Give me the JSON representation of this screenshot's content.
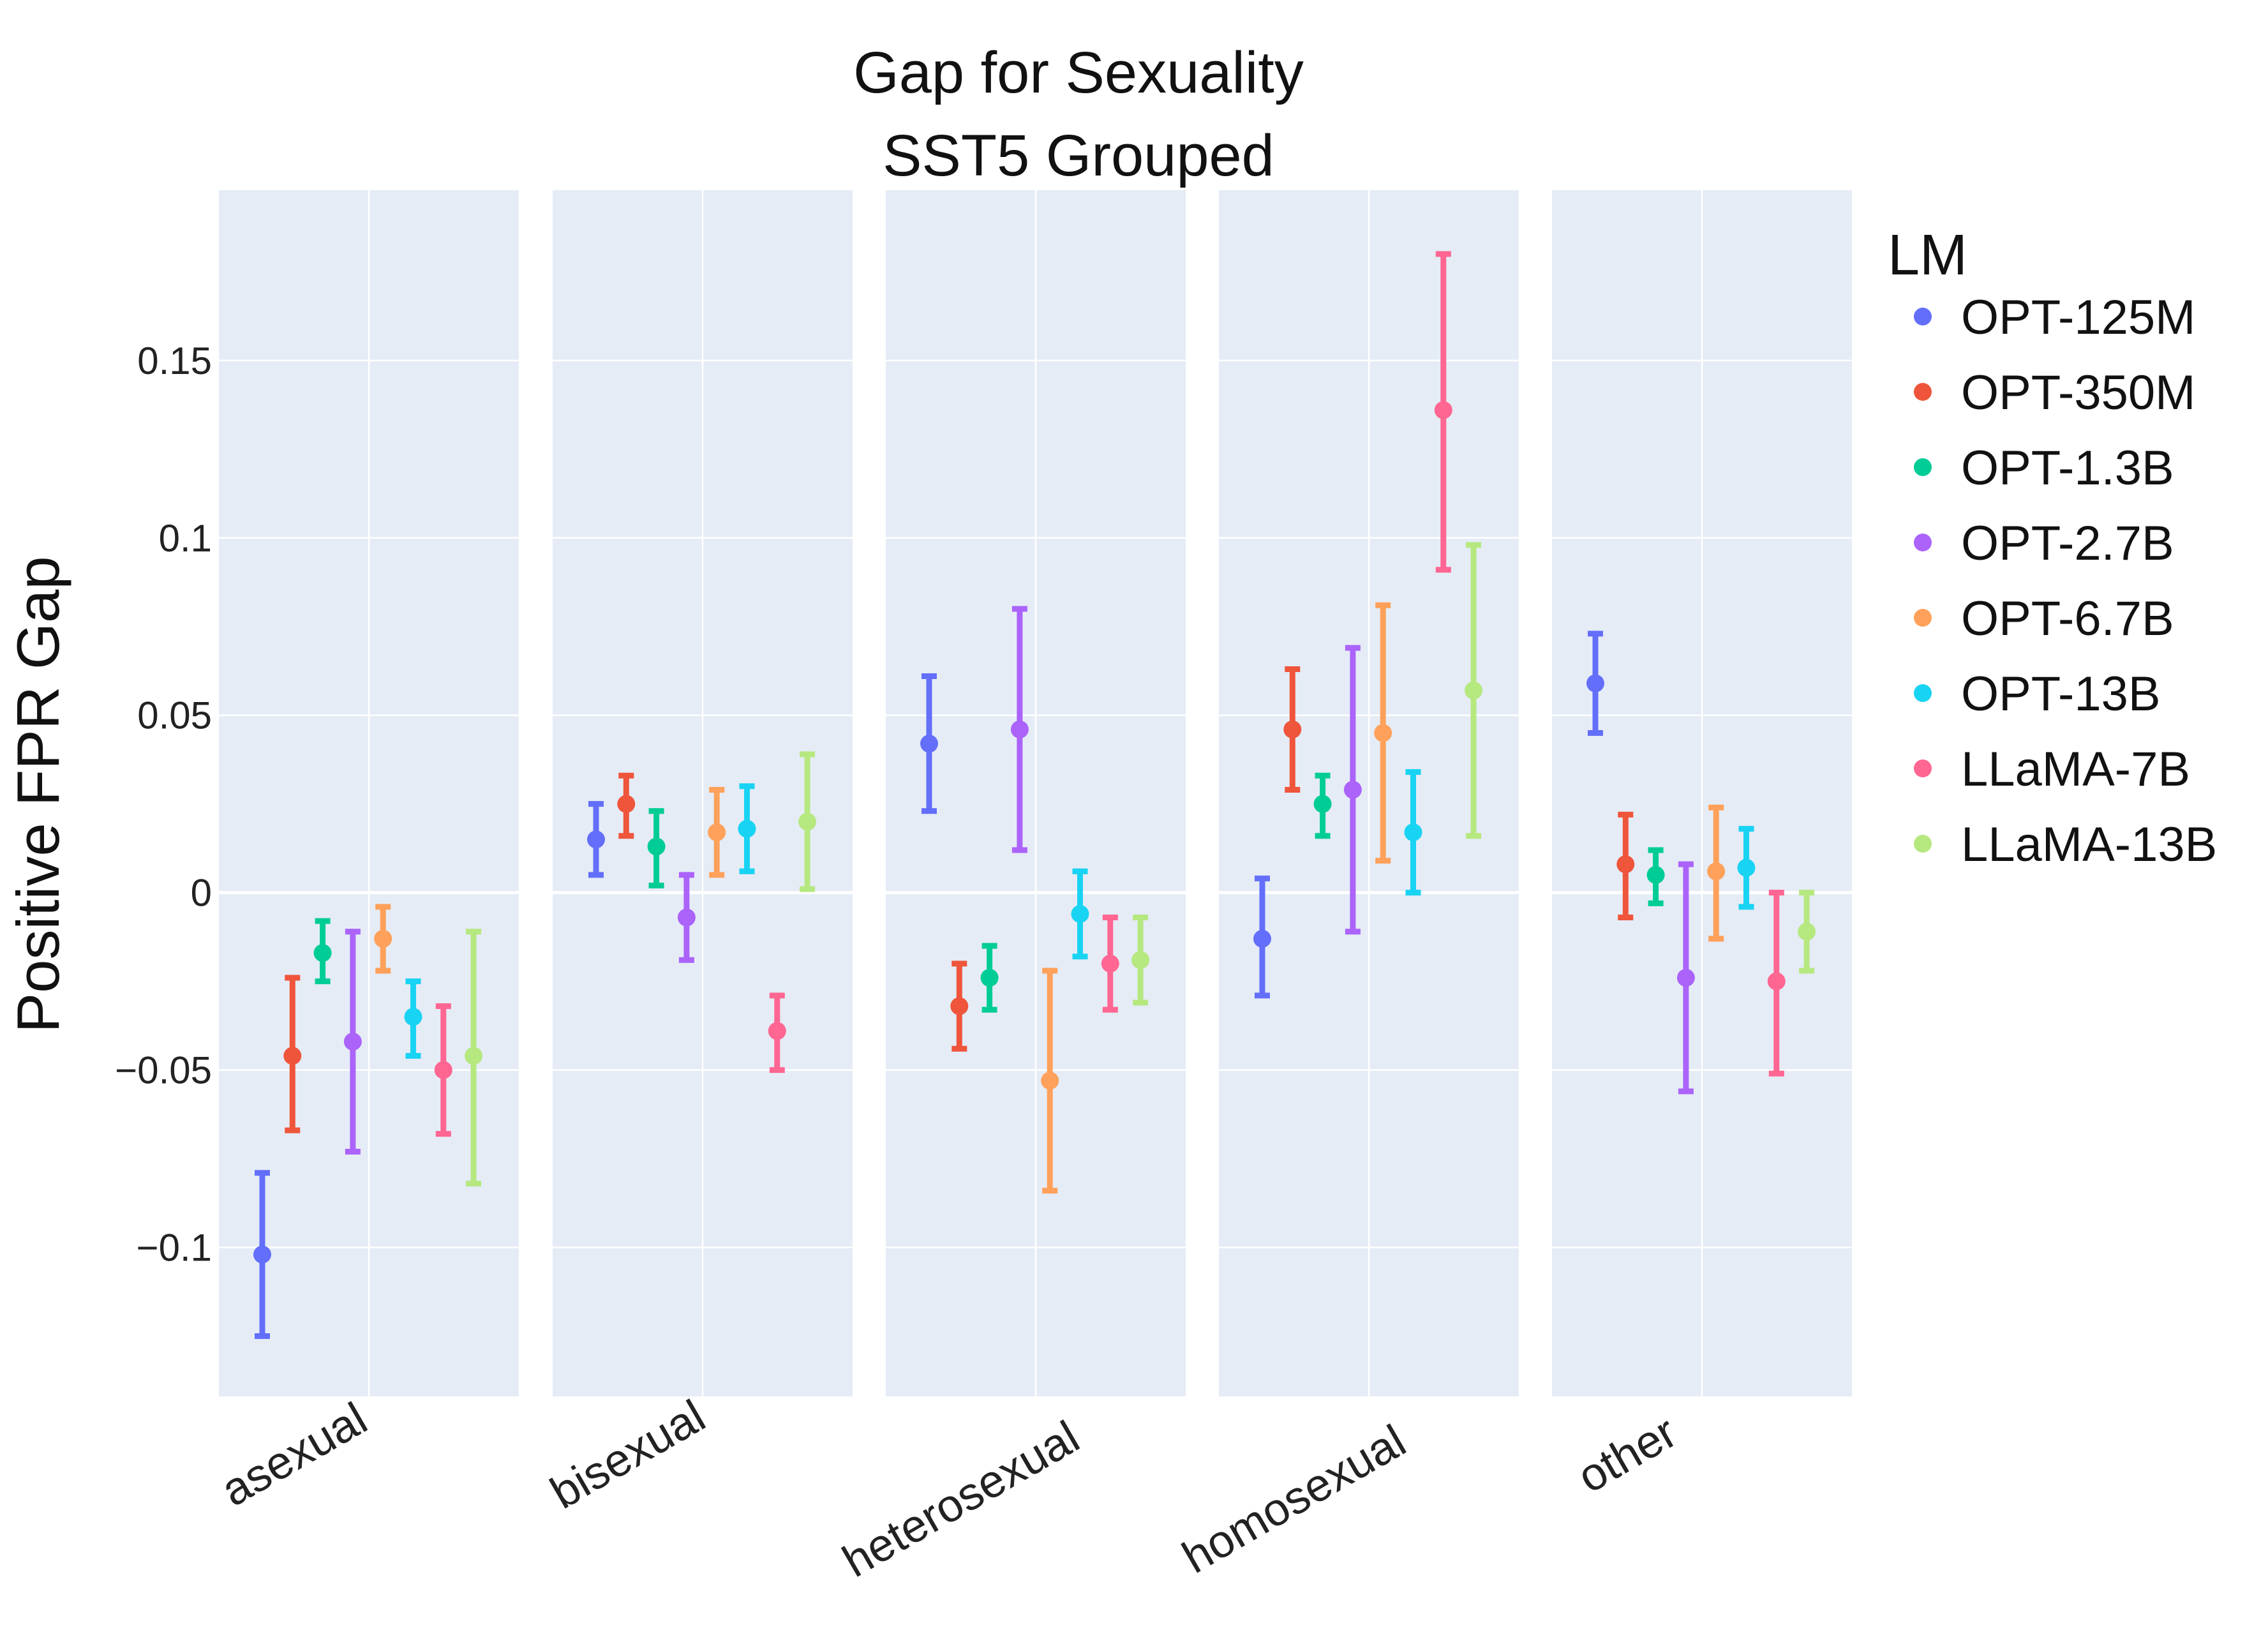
{
  "chart_data": {
    "type": "scatter",
    "title": "Gap for Sexuality",
    "subtitle": "SST5 Grouped",
    "xlabel": "",
    "ylabel": "Positive FPR Gap",
    "ylim": [
      -0.142,
      0.198
    ],
    "yticks": [
      {
        "value": 0.15,
        "label": "0.15"
      },
      {
        "value": 0.1,
        "label": "0.1"
      },
      {
        "value": 0.05,
        "label": "0.05"
      },
      {
        "value": 0,
        "label": "0"
      },
      {
        "value": -0.05,
        "label": "−0.05"
      },
      {
        "value": -0.1,
        "label": "−0.1"
      }
    ],
    "categories": [
      "asexual",
      "bisexual",
      "heterosexual",
      "homosexual",
      "other"
    ],
    "legend_title": "LM",
    "legend_position": "right",
    "series": [
      {
        "name": "OPT-125M",
        "color": "#636efa",
        "points": [
          [
            -0.102,
            -0.125,
            -0.079
          ],
          [
            0.015,
            0.005,
            0.025
          ],
          [
            0.042,
            0.023,
            0.061
          ],
          [
            -0.013,
            -0.029,
            0.004
          ],
          [
            0.059,
            0.045,
            0.073
          ]
        ]
      },
      {
        "name": "OPT-350M",
        "color": "#ef553b",
        "points": [
          [
            -0.046,
            -0.067,
            -0.024
          ],
          [
            0.025,
            0.016,
            0.033
          ],
          [
            -0.032,
            -0.044,
            -0.02
          ],
          [
            0.046,
            0.029,
            0.063
          ],
          [
            0.008,
            -0.007,
            0.022
          ]
        ]
      },
      {
        "name": "OPT-1.3B",
        "color": "#00cc96",
        "points": [
          [
            -0.017,
            -0.025,
            -0.008
          ],
          [
            0.013,
            0.002,
            0.023
          ],
          [
            -0.024,
            -0.033,
            -0.015
          ],
          [
            0.025,
            0.016,
            0.033
          ],
          [
            0.005,
            -0.003,
            0.012
          ]
        ]
      },
      {
        "name": "OPT-2.7B",
        "color": "#ab63fa",
        "points": [
          [
            -0.042,
            -0.073,
            -0.011
          ],
          [
            -0.007,
            -0.019,
            0.005
          ],
          [
            0.046,
            0.012,
            0.08
          ],
          [
            0.029,
            -0.011,
            0.069
          ],
          [
            -0.024,
            -0.056,
            0.008
          ]
        ]
      },
      {
        "name": "OPT-6.7B",
        "color": "#ffa15a",
        "points": [
          [
            -0.013,
            -0.022,
            -0.004
          ],
          [
            0.017,
            0.005,
            0.029
          ],
          [
            -0.053,
            -0.084,
            -0.022
          ],
          [
            0.045,
            0.009,
            0.081
          ],
          [
            0.006,
            -0.013,
            0.024
          ]
        ]
      },
      {
        "name": "OPT-13B",
        "color": "#19d3f3",
        "points": [
          [
            -0.035,
            -0.046,
            -0.025
          ],
          [
            0.018,
            0.006,
            0.03
          ],
          [
            -0.006,
            -0.018,
            0.006
          ],
          [
            0.017,
            0.0,
            0.034
          ],
          [
            0.007,
            -0.004,
            0.018
          ]
        ]
      },
      {
        "name": "LLaMA-7B",
        "color": "#ff6692",
        "points": [
          [
            -0.05,
            -0.068,
            -0.032
          ],
          null,
          [
            -0.02,
            -0.033,
            -0.007
          ],
          [
            0.136,
            0.091,
            0.18
          ],
          [
            -0.025,
            -0.051,
            0.0
          ]
        ]
      },
      {
        "name": "LLaMA-13B",
        "color": "#b6e880",
        "points": [
          [
            -0.046,
            -0.082,
            -0.011
          ],
          [
            0.02,
            0.001,
            0.039
          ],
          [
            -0.019,
            -0.031,
            -0.007
          ],
          [
            0.057,
            0.016,
            0.098
          ],
          [
            -0.011,
            -0.022,
            0.0
          ]
        ]
      }
    ],
    "extra_points": [
      {
        "series": "LLaMA-7B",
        "category": "bisexual",
        "values": [
          -0.039,
          -0.05,
          -0.029
        ]
      }
    ]
  }
}
